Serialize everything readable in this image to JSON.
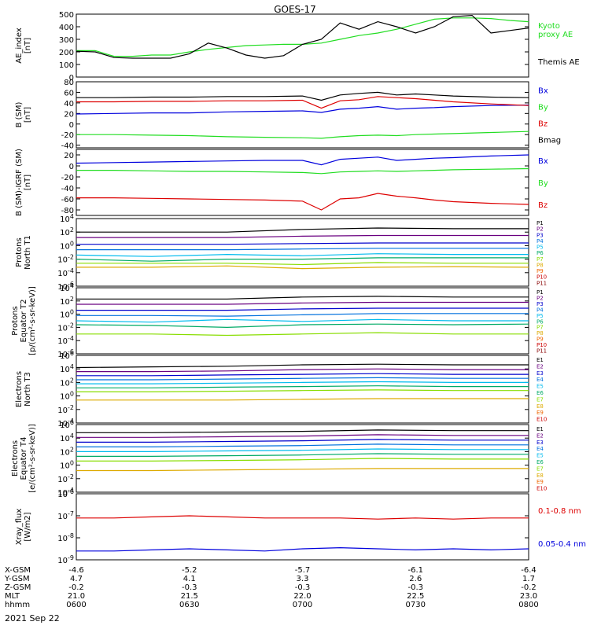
{
  "title": "GOES-17",
  "date_label": "2021 Sep 22",
  "colors": {
    "black": "#000000",
    "red": "#dd0000",
    "blue": "#0000dd",
    "green": "#22dd22",
    "kyoto": "#22dd22",
    "themis": "#000000"
  },
  "chart_data": [
    {
      "type": "line",
      "id": "ae",
      "ylabel": "AE_index\n[nT]",
      "ylim": [
        0,
        500
      ],
      "yticks": [
        "0",
        "100",
        "200",
        "300",
        "400",
        "500"
      ],
      "x": [
        0,
        5,
        10,
        15,
        20,
        25,
        30,
        35,
        40,
        45,
        50,
        55,
        60,
        65,
        70,
        75,
        80,
        85,
        90,
        95,
        100,
        105,
        110,
        115,
        120
      ],
      "series": [
        {
          "name": "Kyoto proxy AE",
          "color_key": "kyoto",
          "legend": "Kyoto\nproxy AE",
          "values": [
            210,
            210,
            165,
            165,
            175,
            175,
            200,
            220,
            235,
            250,
            255,
            260,
            260,
            270,
            300,
            330,
            350,
            380,
            420,
            460,
            470,
            470,
            465,
            450,
            440
          ]
        },
        {
          "name": "Themis AE",
          "color_key": "themis",
          "legend": "Themis AE",
          "values": [
            205,
            200,
            155,
            150,
            150,
            150,
            185,
            270,
            230,
            175,
            150,
            170,
            260,
            300,
            430,
            380,
            440,
            400,
            350,
            400,
            480,
            490,
            350,
            370,
            390
          ]
        }
      ]
    },
    {
      "type": "line",
      "id": "bsm",
      "ylabel": "B (SM)\n[nT]",
      "ylim": [
        -45,
        80
      ],
      "yticks": [
        "-40",
        "-20",
        "0",
        "20",
        "40",
        "60",
        "80"
      ],
      "x": [
        0,
        10,
        20,
        30,
        40,
        50,
        60,
        65,
        70,
        75,
        80,
        85,
        90,
        95,
        100,
        110,
        120
      ],
      "series": [
        {
          "name": "Bx",
          "color_key": "blue",
          "legend": "Bx",
          "values": [
            19,
            20,
            21,
            21,
            23,
            24,
            25,
            22,
            28,
            30,
            33,
            28,
            30,
            31,
            33,
            35,
            36
          ]
        },
        {
          "name": "By",
          "color_key": "green",
          "legend": "By",
          "values": [
            -20,
            -20,
            -21,
            -22,
            -24,
            -25,
            -26,
            -27,
            -24,
            -22,
            -21,
            -22,
            -20,
            -19,
            -18,
            -16,
            -14
          ]
        },
        {
          "name": "Bz",
          "color_key": "red",
          "legend": "Bz",
          "values": [
            42,
            42,
            43,
            43,
            44,
            44,
            45,
            30,
            44,
            46,
            52,
            50,
            48,
            45,
            42,
            38,
            35
          ]
        },
        {
          "name": "Bmag",
          "color_key": "black",
          "legend": "Bmag",
          "values": [
            50,
            50,
            51,
            51,
            52,
            52,
            53,
            45,
            55,
            58,
            60,
            55,
            57,
            55,
            53,
            51,
            50
          ]
        }
      ]
    },
    {
      "type": "line",
      "id": "bigrf",
      "ylabel": "B (SM)-IGRF (SM)\n[nT]",
      "ylim": [
        -90,
        30
      ],
      "yticks": [
        "-80",
        "-60",
        "-40",
        "-20",
        "0",
        "20"
      ],
      "x": [
        0,
        10,
        20,
        30,
        40,
        50,
        60,
        65,
        70,
        75,
        80,
        85,
        90,
        95,
        100,
        110,
        120
      ],
      "series": [
        {
          "name": "Bx",
          "color_key": "blue",
          "legend": "Bx",
          "values": [
            5,
            6,
            7,
            8,
            9,
            10,
            10,
            2,
            12,
            14,
            16,
            10,
            12,
            14,
            15,
            18,
            20
          ]
        },
        {
          "name": "By",
          "color_key": "green",
          "legend": "By",
          "values": [
            -8,
            -8,
            -9,
            -10,
            -10,
            -11,
            -12,
            -14,
            -11,
            -10,
            -9,
            -10,
            -9,
            -8,
            -7,
            -6,
            -5
          ]
        },
        {
          "name": "Bz",
          "color_key": "red",
          "legend": "Bz",
          "values": [
            -58,
            -58,
            -59,
            -60,
            -61,
            -62,
            -64,
            -80,
            -60,
            -58,
            -50,
            -55,
            -58,
            -62,
            -65,
            -68,
            -70
          ]
        }
      ]
    },
    {
      "type": "line",
      "id": "pn",
      "log": true,
      "ylabel": "Protons\nNorth T1",
      "ylim": [
        -6,
        4
      ],
      "yticks": [
        "10^4",
        "10^2",
        "10^0",
        "10^-2",
        "10^-4",
        "10^-6"
      ],
      "x": [
        0,
        20,
        40,
        60,
        80,
        100,
        120
      ],
      "series": [
        {
          "name": "P1",
          "color_key": "c1",
          "legend": "P1",
          "values": [
            2.0,
            2.0,
            2.0,
            2.4,
            2.6,
            2.5,
            2.5
          ]
        },
        {
          "name": "P2",
          "color_key": "c2",
          "legend": "P2",
          "values": [
            1.2,
            1.2,
            1.2,
            1.4,
            1.5,
            1.5,
            1.5
          ]
        },
        {
          "name": "P3",
          "color_key": "c3",
          "legend": "P3",
          "values": [
            0.2,
            0.2,
            0.2,
            0.3,
            0.4,
            0.4,
            0.4
          ]
        },
        {
          "name": "P4",
          "color_key": "c4",
          "legend": "P4",
          "values": [
            -0.6,
            -0.6,
            -0.6,
            -0.5,
            -0.4,
            -0.4,
            -0.4
          ]
        },
        {
          "name": "P5",
          "color_key": "c5",
          "legend": "P5",
          "values": [
            -1.4,
            -1.6,
            -1.3,
            -1.5,
            -1.2,
            -1.3,
            -1.3
          ]
        },
        {
          "name": "P6",
          "color_key": "c6",
          "legend": "P6",
          "values": [
            -2.0,
            -2.3,
            -2.0,
            -2.0,
            -1.8,
            -1.8,
            -1.8
          ]
        },
        {
          "name": "P7",
          "color_key": "c7",
          "legend": "P7",
          "values": [
            -2.6,
            -2.6,
            -2.6,
            -2.8,
            -2.5,
            -2.6,
            -2.6
          ]
        },
        {
          "name": "P8",
          "color_key": "c8",
          "legend": "P8",
          "values": [
            -3.2,
            -3.2,
            -3.0,
            -3.4,
            -3.2,
            -3.1,
            -3.2
          ]
        }
      ],
      "legend_labels": [
        "P1",
        "P2",
        "P3",
        "P4",
        "P5",
        "P6",
        "P7",
        "P8",
        "P9",
        "P10",
        "P11"
      ]
    },
    {
      "type": "line",
      "id": "pe",
      "log": true,
      "ylabel": "Protons\nEquator T2\n[p/(cm²-s-sr-keV)]",
      "ylim": [
        -6,
        4
      ],
      "yticks": [
        "10^4",
        "10^2",
        "10^0",
        "10^-2",
        "10^-4",
        "10^-6"
      ],
      "x": [
        0,
        20,
        40,
        60,
        80,
        100,
        120
      ],
      "series": [
        {
          "name": "P1",
          "color_key": "c1",
          "legend": "P1",
          "values": [
            2.3,
            2.3,
            2.3,
            2.6,
            2.7,
            2.6,
            2.6
          ]
        },
        {
          "name": "P2",
          "color_key": "c2",
          "legend": "P2",
          "values": [
            1.5,
            1.5,
            1.5,
            1.7,
            1.8,
            1.8,
            1.8
          ]
        },
        {
          "name": "P3",
          "color_key": "c3",
          "legend": "P3",
          "values": [
            0.6,
            0.6,
            0.6,
            0.8,
            0.9,
            0.9,
            0.9
          ]
        },
        {
          "name": "P4",
          "color_key": "c4",
          "legend": "P4",
          "values": [
            -0.2,
            -0.2,
            -0.3,
            -0.1,
            0.1,
            0.1,
            0.1
          ]
        },
        {
          "name": "P5",
          "color_key": "c5",
          "legend": "P5",
          "values": [
            -1.0,
            -1.2,
            -0.8,
            -1.1,
            -0.8,
            -1.0,
            -1.0
          ]
        },
        {
          "name": "P6",
          "color_key": "c6",
          "legend": "P6",
          "values": [
            -1.6,
            -1.7,
            -2.0,
            -1.6,
            -1.5,
            -1.6,
            -1.5
          ]
        },
        {
          "name": "P7",
          "color_key": "c7",
          "legend": "P7",
          "values": [
            -3.0,
            -3.0,
            -3.2,
            -3.0,
            -2.8,
            -3.0,
            -3.0
          ]
        }
      ],
      "legend_labels": [
        "P1",
        "P2",
        "P3",
        "P4",
        "P5",
        "P6",
        "P7",
        "P8",
        "P9",
        "P10",
        "P11"
      ]
    },
    {
      "type": "line",
      "id": "en",
      "log": true,
      "ylabel": "Electrons\nNorth T3",
      "ylim": [
        -4,
        6
      ],
      "yticks": [
        "10^6",
        "10^4",
        "10^2",
        "10^0",
        "10^-2",
        "10^-4"
      ],
      "x": [
        0,
        20,
        40,
        60,
        80,
        100,
        120
      ],
      "series": [
        {
          "name": "E1",
          "color_key": "c1",
          "legend": "E1",
          "values": [
            4.2,
            4.3,
            4.4,
            4.6,
            4.7,
            4.6,
            4.6
          ]
        },
        {
          "name": "E2",
          "color_key": "c2",
          "legend": "E2",
          "values": [
            3.6,
            3.6,
            3.7,
            3.9,
            4.0,
            3.9,
            3.9
          ]
        },
        {
          "name": "E3",
          "color_key": "c3",
          "legend": "E3",
          "values": [
            3.0,
            3.0,
            3.1,
            3.2,
            3.3,
            3.2,
            3.2
          ]
        },
        {
          "name": "E4",
          "color_key": "c4",
          "legend": "E4",
          "values": [
            2.4,
            2.4,
            2.5,
            2.6,
            2.7,
            2.6,
            2.6
          ]
        },
        {
          "name": "E5",
          "color_key": "c5",
          "legend": "E5",
          "values": [
            1.8,
            1.8,
            1.9,
            2.0,
            2.1,
            2.0,
            2.0
          ]
        },
        {
          "name": "E6",
          "color_key": "c6",
          "legend": "E6",
          "values": [
            1.2,
            1.2,
            1.3,
            1.4,
            1.5,
            1.4,
            1.4
          ]
        },
        {
          "name": "E7",
          "color_key": "c7",
          "legend": "E7",
          "values": [
            0.6,
            0.6,
            0.7,
            0.8,
            0.9,
            0.8,
            0.8
          ]
        },
        {
          "name": "E8",
          "color_key": "c8",
          "legend": "E8",
          "values": [
            -0.6,
            -0.6,
            -0.6,
            -0.5,
            -0.4,
            -0.4,
            -0.4
          ]
        }
      ],
      "legend_labels": [
        "E1",
        "E2",
        "E3",
        "E4",
        "E5",
        "E6",
        "E7",
        "E8",
        "E9",
        "E10"
      ]
    },
    {
      "type": "line",
      "id": "ee",
      "log": true,
      "ylabel": "Electrons\nEquator T4\n[e/(cm²-s-sr-keV)]",
      "ylim": [
        -4,
        6
      ],
      "yticks": [
        "10^6",
        "10^4",
        "10^2",
        "10^0",
        "10^-2",
        "10^-4"
      ],
      "x": [
        0,
        20,
        40,
        60,
        80,
        100,
        120
      ],
      "series": [
        {
          "name": "E1",
          "color_key": "c1",
          "legend": "E1",
          "values": [
            4.8,
            4.8,
            4.9,
            5.0,
            5.2,
            5.1,
            5.1
          ]
        },
        {
          "name": "E2",
          "color_key": "c2",
          "legend": "E2",
          "values": [
            4.1,
            4.1,
            4.2,
            4.3,
            4.5,
            4.4,
            4.4
          ]
        },
        {
          "name": "E3",
          "color_key": "c3",
          "legend": "E3",
          "values": [
            3.4,
            3.4,
            3.5,
            3.6,
            3.8,
            3.7,
            3.7
          ]
        },
        {
          "name": "E4",
          "color_key": "c4",
          "legend": "E4",
          "values": [
            2.7,
            2.7,
            2.8,
            2.9,
            3.1,
            3.0,
            3.0
          ]
        },
        {
          "name": "E5",
          "color_key": "c5",
          "legend": "E5",
          "values": [
            2.0,
            2.0,
            2.1,
            2.2,
            2.4,
            2.3,
            2.3
          ]
        },
        {
          "name": "E6",
          "color_key": "c6",
          "legend": "E6",
          "values": [
            1.3,
            1.3,
            1.4,
            1.5,
            1.7,
            1.6,
            1.6
          ]
        },
        {
          "name": "E7",
          "color_key": "c7",
          "legend": "E7",
          "values": [
            0.6,
            0.6,
            0.7,
            0.8,
            1.0,
            0.9,
            0.9
          ]
        },
        {
          "name": "E8",
          "color_key": "c8",
          "legend": "E8",
          "values": [
            -0.8,
            -0.8,
            -0.7,
            -0.6,
            -0.5,
            -0.5,
            -0.5
          ]
        }
      ],
      "legend_labels": [
        "E1",
        "E2",
        "E3",
        "E4",
        "E5",
        "E6",
        "E7",
        "E8",
        "E9",
        "E10"
      ]
    },
    {
      "type": "line",
      "id": "xray",
      "log": true,
      "ylabel": "Xray_flux\n[W/m2]",
      "ylim": [
        -9,
        -6
      ],
      "yticks": [
        "10^-6",
        "10^-7",
        "10^-8",
        "10^-9"
      ],
      "x": [
        0,
        10,
        20,
        30,
        40,
        50,
        60,
        70,
        80,
        90,
        100,
        110,
        120
      ],
      "series": [
        {
          "name": "0.1-0.8 nm",
          "color_key": "red",
          "legend": "0.1-0.8 nm",
          "values": [
            -7.1,
            -7.1,
            -7.05,
            -7.0,
            -7.05,
            -7.1,
            -7.1,
            -7.1,
            -7.15,
            -7.1,
            -7.15,
            -7.1,
            -7.1
          ]
        },
        {
          "name": "0.05-0.4 nm",
          "color_key": "blue",
          "legend": "0.05-0.4 nm",
          "values": [
            -8.6,
            -8.6,
            -8.55,
            -8.5,
            -8.55,
            -8.6,
            -8.5,
            -8.45,
            -8.5,
            -8.55,
            -8.5,
            -8.55,
            -8.5
          ]
        }
      ]
    }
  ],
  "bottom_axis": {
    "labels": [
      "X-GSM",
      "Y-GSM",
      "Z-GSM",
      "MLT",
      "hhmm"
    ],
    "columns": [
      [
        "-4.6",
        "4.7",
        "-0.2",
        "21.0",
        "0600"
      ],
      [
        "-5.2",
        "4.1",
        "-0.3",
        "21.5",
        "0630"
      ],
      [
        "-5.7",
        "3.3",
        "-0.3",
        "22.0",
        "0700"
      ],
      [
        "-6.1",
        "2.6",
        "-0.3",
        "22.5",
        "0730"
      ],
      [
        "-6.4",
        "1.7",
        "-0.2",
        "23.0",
        "0800"
      ]
    ]
  },
  "series_colors": {
    "c1": "#000000",
    "c2": "#6a0080",
    "c3": "#0000cc",
    "c4": "#0070dd",
    "c5": "#00bbee",
    "c6": "#00aa66",
    "c7": "#88dd00",
    "c8": "#ddaa00",
    "c9": "#ee6600",
    "c10": "#cc0000",
    "c11": "#880000"
  }
}
